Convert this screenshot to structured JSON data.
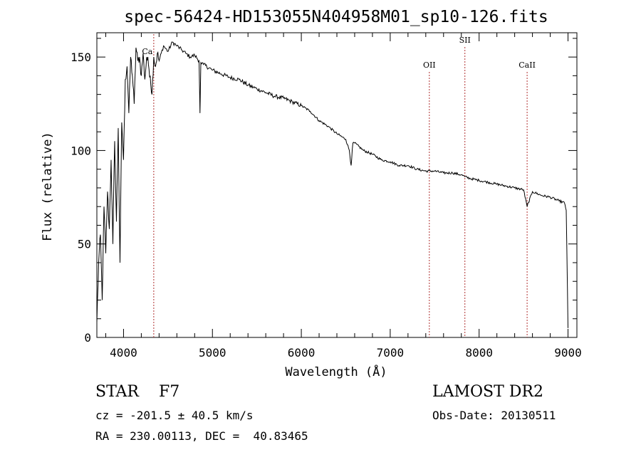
{
  "chart_data": {
    "type": "line",
    "title": "spec-56424-HD153055N404958M01_sp10-126.fits",
    "xlabel": "Wavelength (Å)",
    "ylabel": "Flux (relative)",
    "xlim": [
      3700,
      9100
    ],
    "ylim": [
      0,
      163
    ],
    "xticks": [
      4000,
      5000,
      6000,
      7000,
      8000,
      9000
    ],
    "yticks": [
      0,
      50,
      100,
      150
    ],
    "grid": false,
    "line_color": "#000000",
    "marker_color": "#b03030",
    "series": [
      {
        "x": [
          3700,
          3720,
          3740,
          3760,
          3780,
          3800,
          3820,
          3840,
          3860,
          3880,
          3900,
          3920,
          3940,
          3960,
          3980,
          4000,
          4020,
          4040,
          4060,
          4080,
          4100,
          4120,
          4140,
          4160,
          4180,
          4200,
          4220,
          4240,
          4260,
          4280,
          4300,
          4320,
          4340,
          4360,
          4380,
          4400,
          4450,
          4500,
          4550,
          4600,
          4650,
          4700,
          4750,
          4800,
          4850,
          4860,
          4870,
          4900,
          5000,
          5100,
          5200,
          5300,
          5400,
          5500,
          5600,
          5700,
          5800,
          5900,
          6000,
          6100,
          6200,
          6300,
          6400,
          6500,
          6540,
          6560,
          6580,
          6600,
          6700,
          6800,
          6900,
          7000,
          7100,
          7200,
          7300,
          7400,
          7500,
          7600,
          7700,
          7800,
          7840,
          7900,
          8000,
          8100,
          8200,
          8300,
          8400,
          8500,
          8540,
          8600,
          8700,
          8800,
          8900,
          8960,
          8980,
          9000
        ],
        "y": [
          8,
          40,
          55,
          20,
          70,
          45,
          78,
          58,
          95,
          50,
          105,
          62,
          112,
          40,
          115,
          95,
          138,
          145,
          120,
          150,
          140,
          125,
          155,
          148,
          150,
          140,
          152,
          138,
          150,
          146,
          140,
          130,
          150,
          145,
          152,
          148,
          156,
          153,
          158,
          156,
          154,
          152,
          150,
          151,
          148,
          120,
          147,
          146,
          143,
          141,
          139,
          138,
          135,
          133,
          131,
          129,
          128,
          126,
          124,
          121,
          116,
          113,
          109,
          106,
          100,
          92,
          104,
          104,
          100,
          98,
          95,
          94,
          92,
          92,
          90,
          89,
          89,
          88,
          88,
          87,
          86,
          85,
          84,
          83,
          82,
          81,
          80,
          79,
          70,
          78,
          76,
          75,
          73,
          72,
          68,
          5
        ]
      }
    ],
    "markers": [
      {
        "x": 4340,
        "label": "Ca"
      },
      {
        "x": 7440,
        "label": "OII"
      },
      {
        "x": 7840,
        "label": "SII"
      },
      {
        "x": 8540,
        "label": "CaII"
      }
    ]
  },
  "info": {
    "class": "STAR    F7",
    "survey": "LAMOST DR2",
    "cz": "cz = -201.5 ± 40.5 km/s",
    "obs_date": "Obs-Date: 20130511",
    "radec": "RA = 230.00113, DEC =  40.83465"
  }
}
